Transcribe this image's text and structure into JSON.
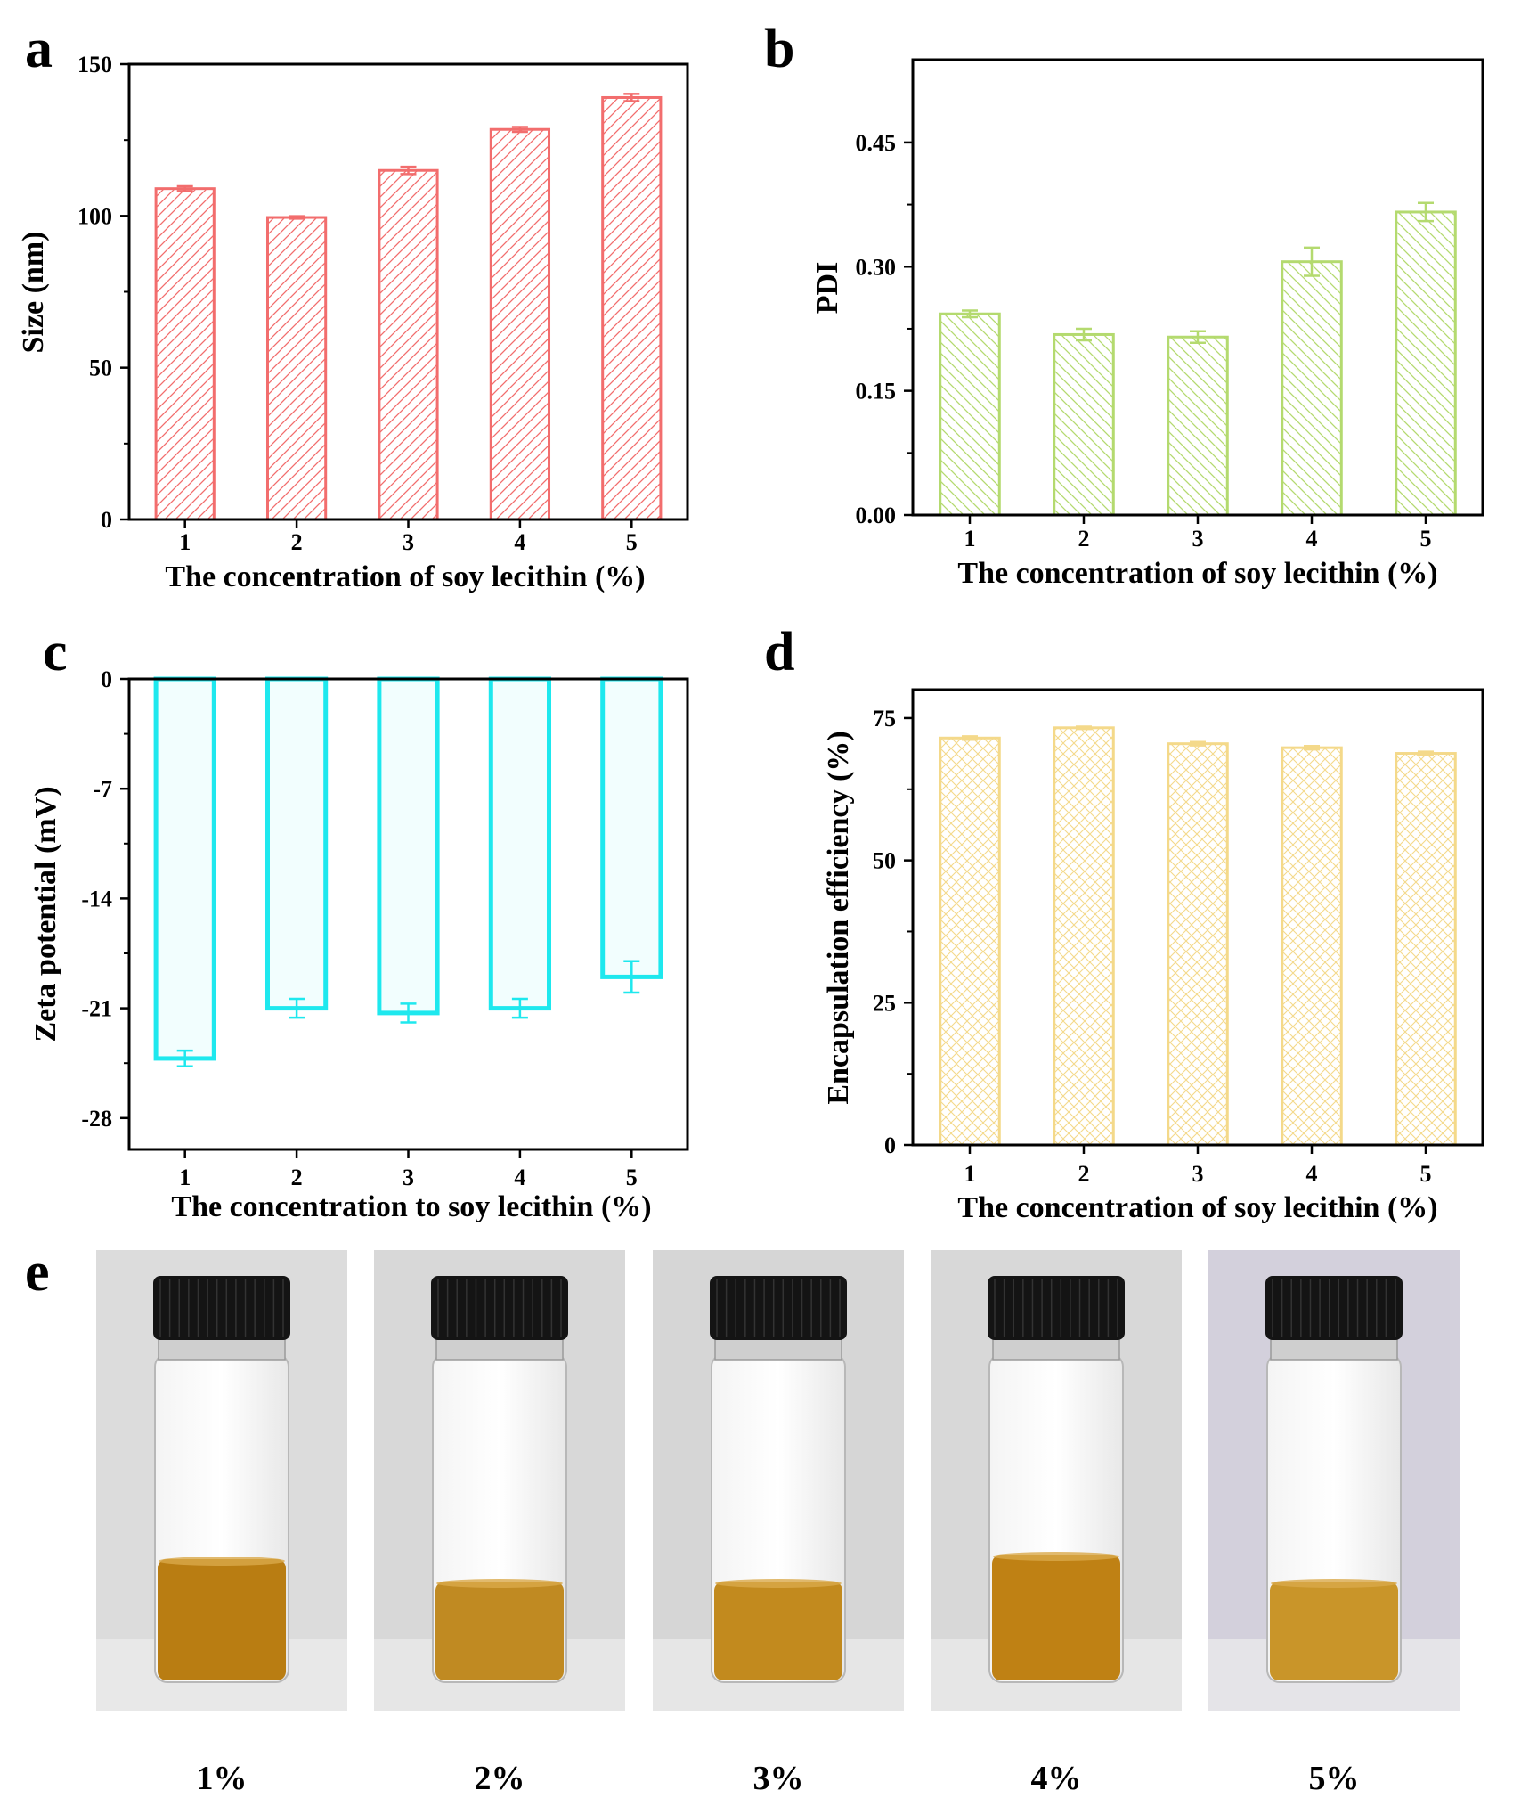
{
  "figure": {
    "panel_labels": [
      "a",
      "b",
      "c",
      "d",
      "e"
    ]
  },
  "chart_data": [
    {
      "panel": "a",
      "type": "bar",
      "categories": [
        "1",
        "2",
        "3",
        "4",
        "5"
      ],
      "values": [
        109,
        99.5,
        115,
        128.5,
        139
      ],
      "errors": [
        0.8,
        0.4,
        1.2,
        0.8,
        1.2
      ],
      "xlabel": "The concentration of soy lecithin (%)",
      "ylabel": "Size (nm)",
      "ylim": [
        0,
        150
      ],
      "yticks": [
        0,
        50,
        100,
        150
      ],
      "ytick_labels": [
        "0",
        "50",
        "100",
        "150"
      ],
      "color": "#f26d6d",
      "fill_pattern": "diagonal-hatch"
    },
    {
      "panel": "b",
      "type": "bar",
      "categories": [
        "1",
        "2",
        "3",
        "4",
        "5"
      ],
      "values": [
        0.243,
        0.218,
        0.215,
        0.306,
        0.366
      ],
      "errors": [
        0.004,
        0.007,
        0.007,
        0.017,
        0.011
      ],
      "xlabel": "The concentration of soy lecithin (%)",
      "ylabel": "PDI",
      "ylim": [
        0,
        0.55
      ],
      "yticks": [
        0,
        0.15,
        0.3,
        0.45
      ],
      "ytick_labels": [
        "0.00",
        "0.15",
        "0.30",
        "0.45"
      ],
      "color": "#b4da6f",
      "fill_pattern": "back-diagonal-hatch"
    },
    {
      "panel": "c",
      "type": "bar",
      "categories": [
        "1",
        "2",
        "3",
        "4",
        "5"
      ],
      "values": [
        -24.2,
        -21.0,
        -21.3,
        -21.0,
        -19.0
      ],
      "errors": [
        0.5,
        0.6,
        0.6,
        0.6,
        1.0
      ],
      "xlabel": "The concentration to soy lecithin (%)",
      "ylabel": "Zeta potential (mV)",
      "ylim": [
        -30,
        0
      ],
      "yticks": [
        0,
        -7,
        -14,
        -21,
        -28
      ],
      "ytick_labels": [
        "0",
        "-7",
        "-14",
        "-21",
        "-28"
      ],
      "color": "#1ee8ee",
      "fill_pattern": "light-tint"
    },
    {
      "panel": "d",
      "type": "bar",
      "categories": [
        "1",
        "2",
        "3",
        "4",
        "5"
      ],
      "values": [
        71.5,
        73.3,
        70.5,
        69.8,
        68.8
      ],
      "errors": [
        0.3,
        0.2,
        0.3,
        0.3,
        0.3
      ],
      "xlabel": "The concentration of soy lecithin (%)",
      "ylabel": "Encapsulation efficiency (%)",
      "ylim": [
        0,
        80
      ],
      "yticks": [
        0,
        25,
        50,
        75
      ],
      "ytick_labels": [
        "0",
        "25",
        "50",
        "75"
      ],
      "color": "#f4d98a",
      "fill_pattern": "cross-hatch"
    }
  ],
  "photos": {
    "panel": "e",
    "items": [
      {
        "caption": "1%",
        "background": "#dcdcdc",
        "liquid_color": "#b97d12"
      },
      {
        "caption": "2%",
        "background": "#d8d8d8",
        "liquid_color": "#c08a22"
      },
      {
        "caption": "3%",
        "background": "#d6d6d6",
        "liquid_color": "#c28a1e"
      },
      {
        "caption": "4%",
        "background": "#d8d8d8",
        "liquid_color": "#bf8114"
      },
      {
        "caption": "5%",
        "background": "#d3d0dc",
        "liquid_color": "#c99529"
      }
    ]
  }
}
